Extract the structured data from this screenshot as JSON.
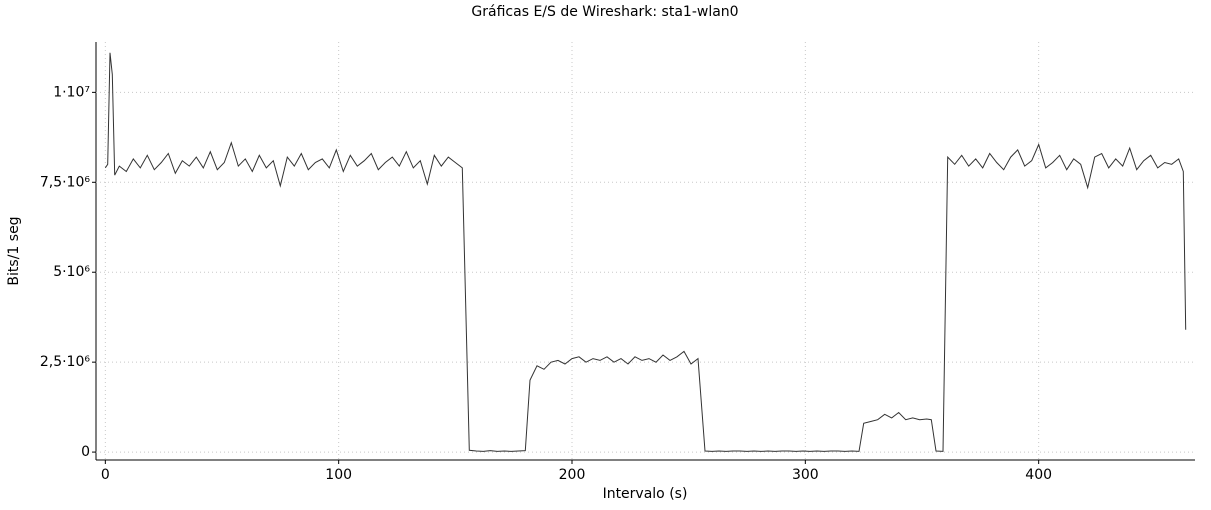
{
  "chart_data": {
    "type": "line",
    "title": "Gráficas E/S de Wireshark: sta1-wlan0",
    "x_label": "Intervalo (s)",
    "y_label": "Bits/1 seg",
    "xlim": [
      -4,
      467
    ],
    "ylim": [
      -220000,
      11400000
    ],
    "xticks": [
      0,
      100,
      200,
      300,
      400
    ],
    "yticks": [
      0,
      {
        "value": 2500000,
        "label": "2,5·10⁶"
      },
      {
        "value": 5000000,
        "label": "5·10⁶"
      },
      {
        "value": 7500000,
        "label": "7,5·10⁶"
      },
      {
        "value": 10000000,
        "label": "1·10⁷"
      }
    ],
    "grid": true,
    "x": [
      0,
      1,
      2,
      3,
      4,
      6,
      9,
      12,
      15,
      18,
      21,
      24,
      27,
      30,
      33,
      36,
      39,
      42,
      45,
      48,
      51,
      54,
      57,
      60,
      63,
      66,
      69,
      72,
      75,
      78,
      81,
      84,
      87,
      90,
      93,
      96,
      99,
      102,
      105,
      108,
      111,
      114,
      117,
      120,
      123,
      126,
      129,
      132,
      135,
      138,
      141,
      144,
      147,
      150,
      153,
      156,
      159,
      162,
      165,
      168,
      171,
      174,
      177,
      180,
      182,
      185,
      188,
      191,
      194,
      197,
      200,
      203,
      206,
      209,
      212,
      215,
      218,
      221,
      224,
      227,
      230,
      233,
      236,
      239,
      242,
      245,
      248,
      251,
      254,
      257,
      260,
      263,
      266,
      269,
      272,
      275,
      278,
      281,
      284,
      287,
      290,
      293,
      296,
      299,
      302,
      305,
      308,
      311,
      314,
      317,
      320,
      323,
      325,
      328,
      331,
      334,
      337,
      340,
      343,
      346,
      349,
      352,
      354,
      356,
      359,
      361,
      364,
      367,
      370,
      373,
      376,
      379,
      382,
      385,
      388,
      391,
      394,
      397,
      400,
      403,
      406,
      409,
      412,
      415,
      418,
      421,
      424,
      427,
      430,
      433,
      436,
      439,
      442,
      445,
      448,
      451,
      454,
      457,
      460,
      462,
      463
    ],
    "series": [
      {
        "name": "sta1-wlan0",
        "color": "#333333",
        "values": [
          7900000,
          8000000,
          11100000,
          10500000,
          7700000,
          7950000,
          7800000,
          8150000,
          7900000,
          8250000,
          7850000,
          8050000,
          8300000,
          7750000,
          8100000,
          7950000,
          8200000,
          7900000,
          8350000,
          7850000,
          8050000,
          8600000,
          7950000,
          8150000,
          7800000,
          8250000,
          7900000,
          8100000,
          7400000,
          8200000,
          7950000,
          8300000,
          7850000,
          8050000,
          8150000,
          7900000,
          8400000,
          7800000,
          8250000,
          7950000,
          8100000,
          8300000,
          7850000,
          8050000,
          8200000,
          7950000,
          8350000,
          7900000,
          8100000,
          7450000,
          8250000,
          7950000,
          8200000,
          8050000,
          7900000,
          50000,
          30000,
          20000,
          40000,
          20000,
          30000,
          20000,
          30000,
          40000,
          2000000,
          2400000,
          2300000,
          2500000,
          2550000,
          2450000,
          2600000,
          2650000,
          2500000,
          2600000,
          2550000,
          2650000,
          2500000,
          2600000,
          2450000,
          2650000,
          2550000,
          2600000,
          2500000,
          2700000,
          2550000,
          2650000,
          2800000,
          2450000,
          2600000,
          30000,
          20000,
          30000,
          20000,
          30000,
          30000,
          20000,
          30000,
          20000,
          30000,
          20000,
          30000,
          30000,
          20000,
          30000,
          20000,
          30000,
          20000,
          30000,
          30000,
          20000,
          30000,
          20000,
          800000,
          850000,
          900000,
          1050000,
          950000,
          1100000,
          900000,
          950000,
          900000,
          920000,
          900000,
          30000,
          20000,
          8200000,
          8000000,
          8250000,
          7950000,
          8150000,
          7900000,
          8300000,
          8050000,
          7850000,
          8200000,
          8400000,
          7950000,
          8100000,
          8550000,
          7900000,
          8050000,
          8250000,
          7850000,
          8150000,
          8000000,
          7350000,
          8200000,
          8300000,
          7900000,
          8150000,
          7950000,
          8450000,
          7850000,
          8100000,
          8250000,
          7900000,
          8050000,
          8000000,
          8150000,
          7800000,
          3400000
        ]
      }
    ]
  }
}
